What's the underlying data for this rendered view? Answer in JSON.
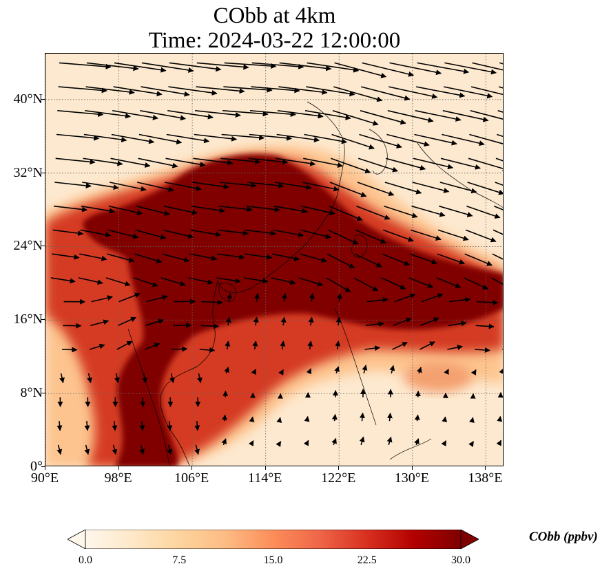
{
  "title": {
    "line1": "CObb at 4km",
    "line2": "Time: 2024-03-22 12:00:00"
  },
  "map": {
    "extent": {
      "lon_min": 90,
      "lon_max": 140,
      "lat_min": 0,
      "lat_max": 45
    },
    "x_ticks": [
      "90°E",
      "98°E",
      "106°E",
      "114°E",
      "122°E",
      "130°E",
      "138°E"
    ],
    "x_tick_values": [
      90,
      98,
      106,
      114,
      122,
      130,
      138
    ],
    "y_ticks": [
      "0°",
      "8°N",
      "16°N",
      "24°N",
      "32°N",
      "40°N"
    ],
    "y_tick_values": [
      0,
      8,
      16,
      24,
      32,
      40
    ],
    "gridlines": "dotted",
    "field": "CObb",
    "plume_description_colors": {
      "max": "#800000",
      "mid": "#d7301f",
      "low": "#fdbb84",
      "background": "#fee8c8"
    },
    "layers": [
      "filled-contours",
      "coastlines",
      "wind-vectors"
    ]
  },
  "colorbar": {
    "label": "CObb (ppbv)",
    "min": 0.0,
    "max": 30.0,
    "ticks": [
      "0.0",
      "7.5",
      "15.0",
      "22.5",
      "30.0"
    ],
    "tick_values": [
      0,
      7.5,
      15,
      22.5,
      30
    ],
    "colormap": "OrRd",
    "extend": "both",
    "stops": [
      "#fff7ec",
      "#fee8c8",
      "#fdd49e",
      "#fdbb84",
      "#fc8d59",
      "#ef6548",
      "#d7301f",
      "#b30000",
      "#7f0000"
    ]
  }
}
